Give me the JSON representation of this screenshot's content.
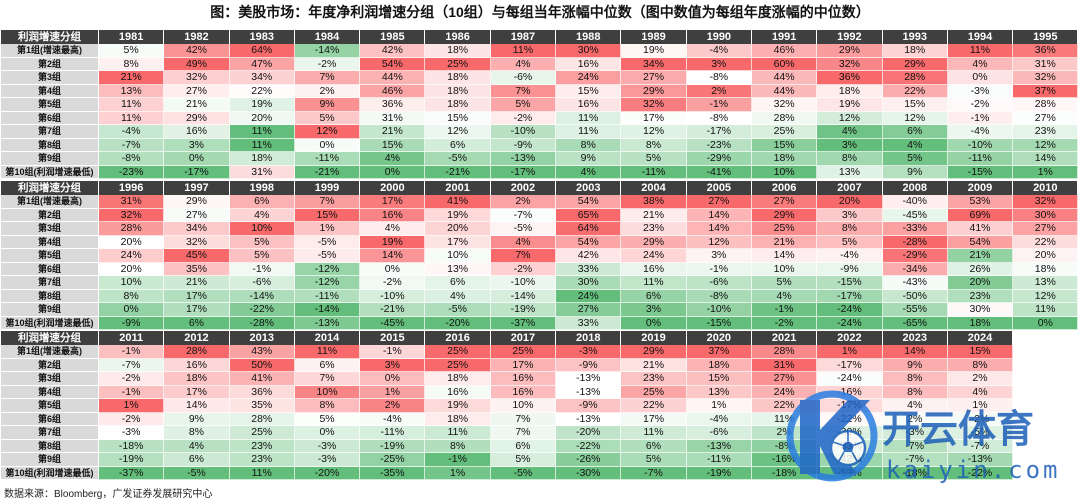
{
  "title": "图：美股市场：年度净利润增速分组（10组）与每组当年涨幅中位数（图中数值为每组年度涨幅的中位数）",
  "header_label": "利润增速分组",
  "row_labels": [
    "第1组(增速最高)",
    "第2组",
    "第3组",
    "第4组",
    "第5组",
    "第6组",
    "第7组",
    "第8组",
    "第9组",
    "第10组(利润增速最低)"
  ],
  "colors": {
    "high": "#F8696B",
    "mid": "#FFFFFF",
    "low": "#63BE7B"
  },
  "blocks": [
    {
      "years": [
        "1981",
        "1982",
        "1983",
        "1984",
        "1985",
        "1986",
        "1987",
        "1988",
        "1989",
        "1990",
        "1991",
        "1992",
        "1993",
        "1994",
        "1995"
      ],
      "rows": [
        [
          "5%",
          "42%",
          "64%",
          "-14%",
          "42%",
          "18%",
          "11%",
          "30%",
          "19%",
          "-4%",
          "46%",
          "29%",
          "18%",
          "11%",
          "36%"
        ],
        [
          "8%",
          "49%",
          "47%",
          "-2%",
          "54%",
          "25%",
          "4%",
          "16%",
          "34%",
          "3%",
          "60%",
          "32%",
          "29%",
          "4%",
          "31%"
        ],
        [
          "21%",
          "32%",
          "34%",
          "7%",
          "44%",
          "18%",
          "-6%",
          "24%",
          "27%",
          "-8%",
          "44%",
          "36%",
          "28%",
          "0%",
          "32%"
        ],
        [
          "13%",
          "27%",
          "22%",
          "2%",
          "46%",
          "18%",
          "7%",
          "15%",
          "29%",
          "2%",
          "44%",
          "18%",
          "22%",
          "-3%",
          "37%"
        ],
        [
          "11%",
          "21%",
          "19%",
          "9%",
          "36%",
          "18%",
          "5%",
          "16%",
          "32%",
          "-1%",
          "32%",
          "19%",
          "15%",
          "-2%",
          "28%"
        ],
        [
          "11%",
          "29%",
          "20%",
          "5%",
          "31%",
          "15%",
          "-2%",
          "11%",
          "17%",
          "-8%",
          "28%",
          "12%",
          "12%",
          "-1%",
          "27%"
        ],
        [
          "-4%",
          "16%",
          "11%",
          "12%",
          "21%",
          "12%",
          "-10%",
          "11%",
          "12%",
          "-17%",
          "25%",
          "4%",
          "6%",
          "-4%",
          "23%"
        ],
        [
          "-7%",
          "3%",
          "11%",
          "0%",
          "15%",
          "6%",
          "-9%",
          "8%",
          "8%",
          "-23%",
          "15%",
          "3%",
          "4%",
          "-10%",
          "12%"
        ],
        [
          "-8%",
          "0%",
          "18%",
          "-11%",
          "4%",
          "-5%",
          "-13%",
          "9%",
          "5%",
          "-29%",
          "18%",
          "8%",
          "5%",
          "-11%",
          "14%"
        ],
        [
          "-23%",
          "-17%",
          "31%",
          "-21%",
          "0%",
          "-21%",
          "-17%",
          "4%",
          "-11%",
          "-41%",
          "10%",
          "13%",
          "9%",
          "-15%",
          "1%"
        ]
      ]
    },
    {
      "years": [
        "1996",
        "1997",
        "1998",
        "1999",
        "2000",
        "2001",
        "2002",
        "2003",
        "2004",
        "2005",
        "2006",
        "2007",
        "2008",
        "2009",
        "2010"
      ],
      "rows": [
        [
          "31%",
          "29%",
          "6%",
          "7%",
          "17%",
          "41%",
          "2%",
          "54%",
          "38%",
          "27%",
          "27%",
          "20%",
          "-40%",
          "53%",
          "32%"
        ],
        [
          "32%",
          "27%",
          "4%",
          "15%",
          "16%",
          "19%",
          "-7%",
          "65%",
          "21%",
          "14%",
          "29%",
          "3%",
          "-45%",
          "69%",
          "30%"
        ],
        [
          "28%",
          "34%",
          "10%",
          "1%",
          "4%",
          "20%",
          "-5%",
          "64%",
          "23%",
          "14%",
          "25%",
          "8%",
          "-33%",
          "41%",
          "27%"
        ],
        [
          "20%",
          "32%",
          "5%",
          "-5%",
          "19%",
          "17%",
          "4%",
          "54%",
          "29%",
          "12%",
          "21%",
          "5%",
          "-28%",
          "54%",
          "22%"
        ],
        [
          "24%",
          "45%",
          "5%",
          "-5%",
          "14%",
          "10%",
          "7%",
          "42%",
          "24%",
          "3%",
          "14%",
          "-4%",
          "-29%",
          "21%",
          "20%"
        ],
        [
          "20%",
          "35%",
          "-1%",
          "-12%",
          "0%",
          "13%",
          "-2%",
          "33%",
          "16%",
          "-1%",
          "10%",
          "-9%",
          "-34%",
          "26%",
          "18%"
        ],
        [
          "10%",
          "21%",
          "-6%",
          "-12%",
          "-2%",
          "6%",
          "-10%",
          "30%",
          "11%",
          "-6%",
          "5%",
          "-15%",
          "-43%",
          "20%",
          "13%"
        ],
        [
          "8%",
          "17%",
          "-14%",
          "-11%",
          "-10%",
          "4%",
          "-14%",
          "24%",
          "6%",
          "-8%",
          "4%",
          "-17%",
          "-50%",
          "23%",
          "12%"
        ],
        [
          "0%",
          "17%",
          "-22%",
          "-14%",
          "-21%",
          "-5%",
          "-19%",
          "27%",
          "3%",
          "-10%",
          "-1%",
          "-24%",
          "-55%",
          "30%",
          "11%"
        ],
        [
          "-9%",
          "6%",
          "-28%",
          "-13%",
          "-45%",
          "-20%",
          "-37%",
          "33%",
          "0%",
          "-15%",
          "-2%",
          "-24%",
          "-65%",
          "18%",
          "0%"
        ]
      ]
    },
    {
      "years": [
        "2011",
        "2012",
        "2013",
        "2014",
        "2015",
        "2016",
        "2017",
        "2018",
        "2019",
        "2020",
        "2021",
        "2022",
        "2023",
        "2024"
      ],
      "rows": [
        [
          "-1%",
          "28%",
          "43%",
          "11%",
          "-1%",
          "25%",
          "25%",
          "-3%",
          "29%",
          "37%",
          "28%",
          "1%",
          "14%",
          "15%"
        ],
        [
          "-7%",
          "16%",
          "50%",
          "6%",
          "3%",
          "25%",
          "17%",
          "-9%",
          "21%",
          "18%",
          "31%",
          "-17%",
          "9%",
          "8%"
        ],
        [
          "-2%",
          "18%",
          "41%",
          "7%",
          "0%",
          "18%",
          "16%",
          "-13%",
          "23%",
          "15%",
          "27%",
          "-24%",
          "8%",
          "2%"
        ],
        [
          "-1%",
          "17%",
          "36%",
          "10%",
          "1%",
          "16%",
          "16%",
          "-13%",
          "25%",
          "13%",
          "24%",
          "-16%",
          "8%",
          "4%"
        ],
        [
          "1%",
          "14%",
          "35%",
          "8%",
          "2%",
          "19%",
          "10%",
          "-9%",
          "22%",
          "1%",
          "22%",
          "-17%",
          "4%",
          "1%"
        ],
        [
          "-2%",
          "9%",
          "28%",
          "5%",
          "-4%",
          "18%",
          "7%",
          "-13%",
          "17%",
          "-4%",
          "11%",
          "-22%",
          "2%",
          "-2%"
        ],
        [
          "-3%",
          "8%",
          "25%",
          "0%",
          "-11%",
          "11%",
          "7%",
          "-20%",
          "11%",
          "-6%",
          "2%",
          "-30%",
          "-3%",
          "-5%"
        ],
        [
          "-18%",
          "4%",
          "23%",
          "-3%",
          "-19%",
          "8%",
          "6%",
          "-22%",
          "6%",
          "-13%",
          "-8%",
          "-33%",
          "-7%",
          "-7%"
        ],
        [
          "-19%",
          "6%",
          "23%",
          "-3%",
          "-25%",
          "-1%",
          "5%",
          "-26%",
          "5%",
          "-11%",
          "-16%",
          "-42%",
          "-7%",
          "-13%"
        ],
        [
          "-37%",
          "-5%",
          "11%",
          "-20%",
          "-35%",
          "1%",
          "-5%",
          "-30%",
          "-7%",
          "-19%",
          "-18%",
          "-53%",
          "-18%",
          "-22%"
        ]
      ]
    }
  ],
  "source": "数据来源：Bloomberg，广发证券发展研究中心",
  "watermark": {
    "name_cn": "开云体育",
    "name_en": "kaiyin.com",
    "icon": "k-soccer-ball-icon"
  }
}
